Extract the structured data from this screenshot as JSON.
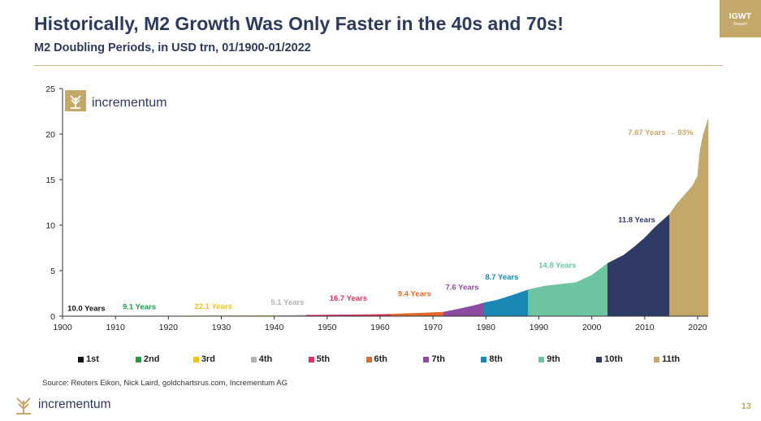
{
  "header": {
    "title": "Historically, M2 Growth Was Only Faster in the 40s and 70s!",
    "subtitle": "M2 Doubling Periods, in USD trn, 01/1900-01/2022"
  },
  "badge": {
    "top": "IGWT",
    "sub": "Report"
  },
  "brand": {
    "name": "incrementum",
    "color": "#c3a86a",
    "text_color": "#2c3a5c"
  },
  "footer": {
    "source": "Source: Reuters Eikon, Nick Laird, goldchartsrus.com, Incrementum AG",
    "page_number": "13"
  },
  "chart_data": {
    "type": "area",
    "title": "",
    "xlabel": "",
    "ylabel": "",
    "xlim": [
      1900,
      2022
    ],
    "ylim": [
      0,
      25
    ],
    "x_ticks": [
      1900,
      1910,
      1920,
      1930,
      1940,
      1950,
      1960,
      1970,
      1980,
      1990,
      2000,
      2010,
      2020
    ],
    "y_ticks": [
      0,
      5,
      10,
      15,
      20,
      25
    ],
    "grid": false,
    "legend_position": "bottom",
    "series": [
      {
        "name": "1st",
        "color": "#111111",
        "label": "10.0 Years",
        "label_at": [
          1904.5,
          0.6
        ],
        "points": [
          [
            1900,
            0.007
          ],
          [
            1910,
            0.014
          ]
        ]
      },
      {
        "name": "2nd",
        "color": "#1e9a4c",
        "label": "9.1 Years",
        "label_at": [
          1914.5,
          0.75
        ],
        "points": [
          [
            1910,
            0.014
          ],
          [
            1919,
            0.028
          ]
        ]
      },
      {
        "name": "3rd",
        "color": "#f2c31c",
        "label": "22.1 Years",
        "label_at": [
          1928.5,
          0.8
        ],
        "points": [
          [
            1919,
            0.028
          ],
          [
            1941,
            0.056
          ]
        ]
      },
      {
        "name": "4th",
        "color": "#b4b4b4",
        "label": "5.1 Years",
        "label_at": [
          1942.5,
          1.25
        ],
        "points": [
          [
            1941,
            0.056
          ],
          [
            1946,
            0.113
          ]
        ]
      },
      {
        "name": "5th",
        "color": "#d8325e",
        "label": "16.7 Years",
        "label_at": [
          1954,
          1.7
        ],
        "points": [
          [
            1946,
            0.113
          ],
          [
            1950,
            0.13
          ],
          [
            1955,
            0.16
          ],
          [
            1960,
            0.19
          ],
          [
            1962,
            0.225
          ]
        ]
      },
      {
        "name": "6th",
        "color": "#e3692a",
        "label": "9.4 Years",
        "label_at": [
          1966.5,
          2.2
        ],
        "points": [
          [
            1962,
            0.225
          ],
          [
            1965,
            0.29
          ],
          [
            1968,
            0.35
          ],
          [
            1972,
            0.45
          ]
        ]
      },
      {
        "name": "7th",
        "color": "#8c4aa0",
        "label": "7.6 Years",
        "label_at": [
          1975.5,
          2.9
        ],
        "points": [
          [
            1972,
            0.45
          ],
          [
            1975,
            0.8
          ],
          [
            1978,
            1.2
          ],
          [
            1979.5,
            1.45
          ]
        ]
      },
      {
        "name": "8th",
        "color": "#1a88b5",
        "label": "8.7 Years",
        "label_at": [
          1983,
          4.0
        ],
        "points": [
          [
            1979.5,
            1.45
          ],
          [
            1982,
            1.75
          ],
          [
            1985,
            2.3
          ],
          [
            1988,
            2.9
          ]
        ]
      },
      {
        "name": "9th",
        "color": "#6cc5a0",
        "label": "14.8 Years",
        "label_at": [
          1993.5,
          5.3
        ],
        "points": [
          [
            1988,
            2.9
          ],
          [
            1991,
            3.3
          ],
          [
            1994,
            3.5
          ],
          [
            1997,
            3.7
          ],
          [
            2000,
            4.5
          ],
          [
            2003,
            5.8
          ]
        ]
      },
      {
        "name": "10th",
        "color": "#2f3b66",
        "label": "11.8 Years",
        "label_at": [
          2008.5,
          10.3
        ],
        "points": [
          [
            2003,
            5.8
          ],
          [
            2006,
            6.7
          ],
          [
            2008,
            7.6
          ],
          [
            2010,
            8.6
          ],
          [
            2012,
            9.8
          ],
          [
            2014.7,
            11.2
          ]
        ]
      },
      {
        "name": "11th",
        "color": "#c3a86a",
        "label": "7.67 Years → 93%",
        "label_at": [
          2013,
          19.9
        ],
        "points": [
          [
            2014.7,
            11.2
          ],
          [
            2016,
            12.3
          ],
          [
            2017.5,
            13.3
          ],
          [
            2019,
            14.3
          ],
          [
            2020.0,
            15.4
          ],
          [
            2020.4,
            18.0
          ],
          [
            2021,
            19.8
          ],
          [
            2022,
            21.7
          ]
        ]
      }
    ]
  }
}
